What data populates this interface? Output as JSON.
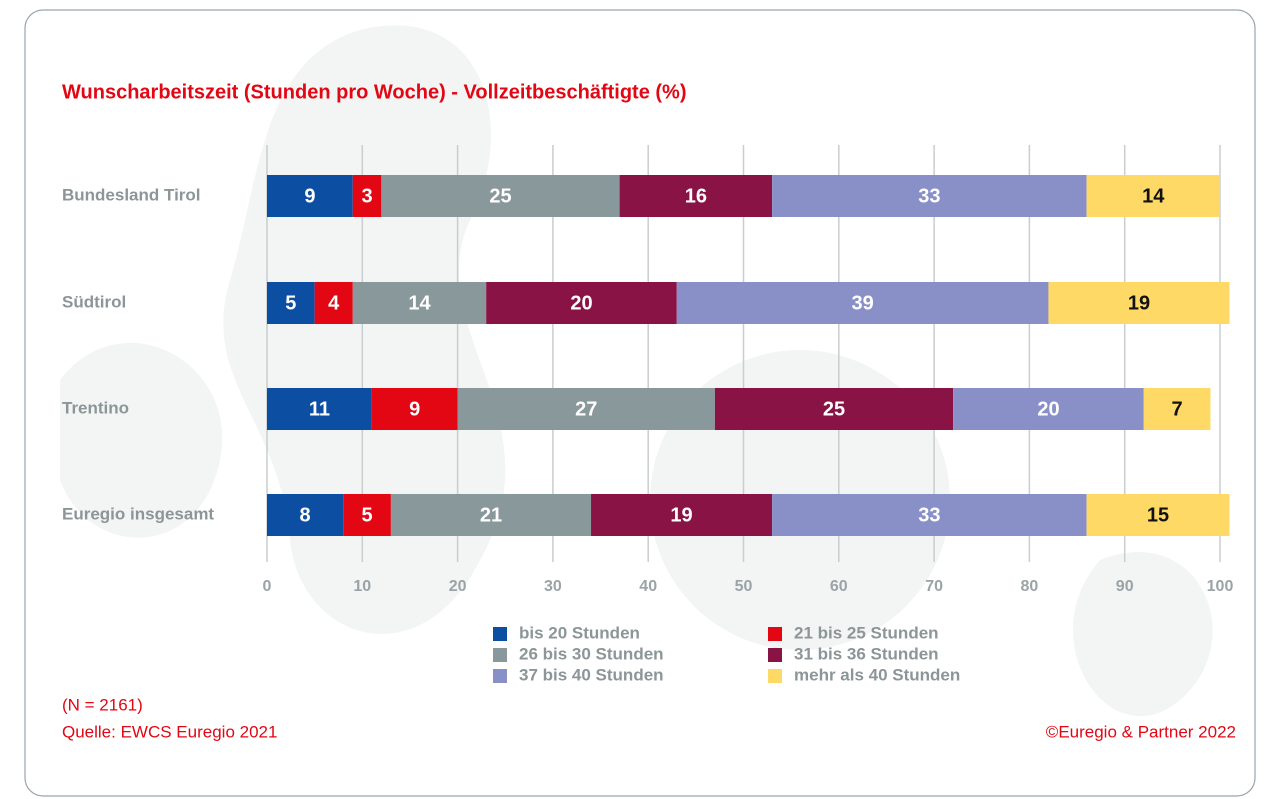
{
  "chart_data": {
    "type": "stacked-bar",
    "orientation": "horizontal",
    "title": "Wunscharbeitszeit (Stunden pro Woche) - Vollzeitbeschäftigte (%)",
    "categories": [
      "Bundesland Tirol",
      "Südtirol",
      "Trentino",
      "Euregio insgesamt"
    ],
    "series": [
      {
        "name": "bis 20 Stunden",
        "color": "#0b4ea2",
        "label_color": "#ffffff",
        "values": [
          9,
          5,
          11,
          8
        ]
      },
      {
        "name": "21 bis 25 Stunden",
        "color": "#e30613",
        "label_color": "#ffffff",
        "values": [
          3,
          4,
          9,
          5
        ]
      },
      {
        "name": "26 bis 30 Stunden",
        "color": "#89989b",
        "label_color": "#ffffff",
        "values": [
          25,
          14,
          27,
          21
        ]
      },
      {
        "name": "31 bis 36 Stunden",
        "color": "#8a1346",
        "label_color": "#ffffff",
        "values": [
          16,
          20,
          25,
          19
        ]
      },
      {
        "name": "37 bis 40 Stunden",
        "color": "#8990c8",
        "label_color": "#ffffff",
        "values": [
          33,
          39,
          20,
          33
        ]
      },
      {
        "name": "mehr als 40 Stunden",
        "color": "#ffd966",
        "label_color": "#111111",
        "values": [
          14,
          19,
          7,
          15
        ]
      }
    ],
    "xlim": [
      0,
      100
    ],
    "xticks": [
      0,
      10,
      20,
      30,
      40,
      50,
      60,
      70,
      80,
      90,
      100
    ],
    "grid": true,
    "note": "(N = 2161)",
    "source": "Quelle: EWCS Euregio 2021",
    "copyright": "©Euregio & Partner 2022"
  }
}
